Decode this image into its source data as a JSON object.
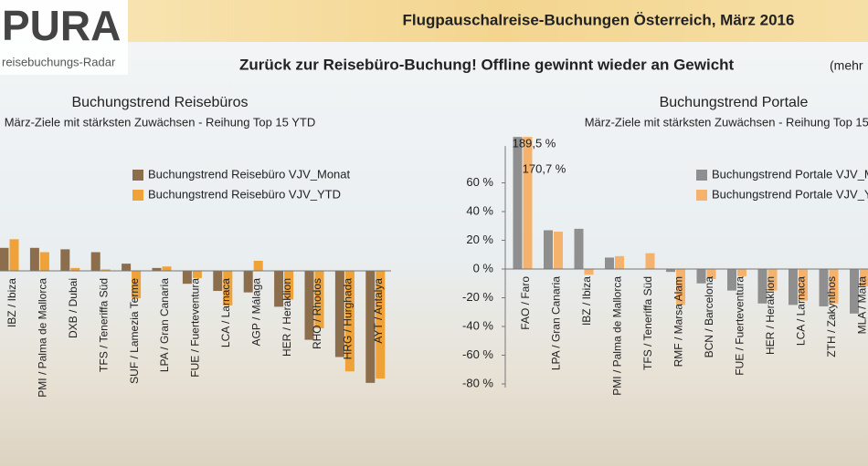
{
  "header": {
    "logo": "PURA",
    "logo_sub": "reisebuchungs-Radar",
    "title": "Flugpauschalreise-Buchungen Österreich, März 2016",
    "subtitle": "Zurück zur Reisebüro-Buchung! Offline gewinnt wieder an Gewicht",
    "subtitle_note": "(mehr"
  },
  "chart_data": [
    {
      "type": "bar",
      "title": "Buchungstrend Reisebüros",
      "subtitle": "März-Ziele mit stärksten Zuwächsen - Reihung Top 15 YTD",
      "categories": [
        "IBZ / Ibiza",
        "PMI / Palma de Mallorca",
        "DXB / Dubai",
        "TFS / Teneriffa Süd",
        "SUF / Lamezia Terme",
        "LPA / Gran Canaria",
        "FUE / Fuerteventura",
        "LCA / Larnaca",
        "AGP / Málaga",
        "HER / Heraklion",
        "RHO / Rhodos",
        "HRG / Hurghada",
        "AYT / Antalya"
      ],
      "series": [
        {
          "name": "Buchungstrend Reisebüro VJV_Monat",
          "color": "#8c6d4c",
          "values": [
            16,
            16,
            15,
            13,
            5,
            2,
            -9,
            -14,
            -15,
            -25,
            -48,
            -60,
            -78
          ]
        },
        {
          "name": "Buchungstrend Reisebüro VJV_YTD",
          "color": "#eea237",
          "values": [
            22,
            13,
            2,
            1,
            -19,
            3,
            -5,
            -24,
            7,
            -20,
            -40,
            -70,
            -75
          ]
        }
      ],
      "ylim": [
        -85,
        92
      ]
    },
    {
      "type": "bar",
      "title": "Buchungstrend Portale",
      "subtitle": "März-Ziele mit stärksten Zuwächsen - Reihung Top 15 YTD",
      "categories": [
        "FAO / Faro",
        "LPA / Gran Canaria",
        "IBZ / Ibiza",
        "PMI / Palma de Mallorca",
        "TFS / Teneriffa Süd",
        "RMF / Marsa Alam",
        "BCN / Barcelona",
        "FUE / Fuerteventura",
        "HER / Heraklion",
        "LCA / Larnaca",
        "ZTH / Zakynthos",
        "MLA / Malta"
      ],
      "series": [
        {
          "name": "Buchungstrend Portale VJV_Monat",
          "color": "#8f8f8f",
          "values": [
            189.5,
            27,
            28,
            8,
            0,
            -2,
            -10,
            -15,
            -24,
            -25,
            -26,
            -31
          ],
          "value_labels": [
            "189,5 %",
            null,
            null,
            null,
            null,
            null,
            null,
            null,
            null,
            null,
            null,
            null
          ]
        },
        {
          "name": "Buchungstrend Portale VJV_YTD",
          "color": "#f4b26c",
          "values": [
            170.7,
            26,
            -4,
            9,
            11,
            -25,
            -7,
            -5,
            -15,
            -22,
            -24,
            -12
          ],
          "value_labels": [
            "170,7 %",
            null,
            null,
            null,
            null,
            null,
            null,
            null,
            null,
            null,
            null,
            null
          ]
        }
      ],
      "ylim": [
        -85,
        92
      ],
      "yticks": [
        {
          "value": 60,
          "label": "60 %"
        },
        {
          "value": 40,
          "label": "40 %"
        },
        {
          "value": 20,
          "label": "20 %"
        },
        {
          "value": 0,
          "label": "0 %"
        },
        {
          "value": -20,
          "label": "-20 %"
        },
        {
          "value": -40,
          "label": "-40 %"
        },
        {
          "value": -60,
          "label": "-60 %"
        },
        {
          "value": -80,
          "label": "-80 %"
        }
      ]
    }
  ]
}
